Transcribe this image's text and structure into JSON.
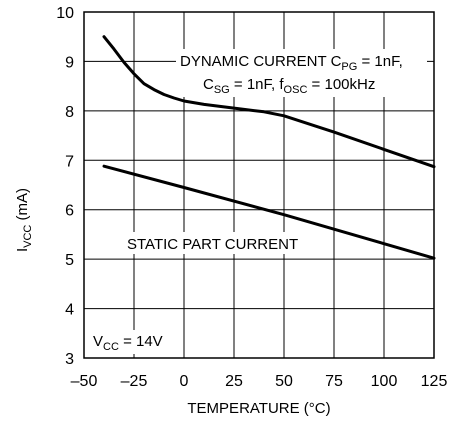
{
  "chart_data": {
    "type": "line",
    "xlabel": "TEMPERATURE (°C)",
    "ylabel": {
      "main": "I",
      "sub": "VCC",
      "rest": " (mA)"
    },
    "xlim": [
      -50,
      125
    ],
    "ylim": [
      3,
      10
    ],
    "xticks": [
      -50,
      -25,
      0,
      25,
      50,
      75,
      100,
      125
    ],
    "xtick_labels": [
      "–50",
      "–25",
      "0",
      "25",
      "50",
      "75",
      "100",
      "125"
    ],
    "yticks": [
      3,
      4,
      5,
      6,
      7,
      8,
      9,
      10
    ],
    "grid": true,
    "series": [
      {
        "name": "DYNAMIC CURRENT",
        "x": [
          -40,
          -35,
          -30,
          -25,
          -20,
          -15,
          -10,
          -5,
          0,
          10,
          20,
          30,
          40,
          50,
          75,
          100,
          125
        ],
        "y": [
          9.5,
          9.25,
          8.98,
          8.75,
          8.55,
          8.43,
          8.33,
          8.26,
          8.2,
          8.13,
          8.08,
          8.03,
          7.98,
          7.9,
          7.57,
          7.22,
          6.87
        ]
      },
      {
        "name": "STATIC PART CURRENT",
        "x": [
          -40,
          0,
          50,
          125
        ],
        "y": [
          6.88,
          6.45,
          5.9,
          5.02
        ]
      }
    ],
    "annotations": {
      "dynamic_line1": {
        "a": "DYNAMIC CURRENT C",
        "sub": "PG",
        "b": " = 1nF,"
      },
      "dynamic_line2": {
        "a": "C",
        "sub1": "SG",
        "b": " = 1nF, f",
        "sub2": "OSC",
        "c": " = 100kHz"
      },
      "static": "STATIC PART CURRENT",
      "vcc": {
        "a": "V",
        "sub": "CC",
        "b": " = 14V"
      }
    }
  }
}
